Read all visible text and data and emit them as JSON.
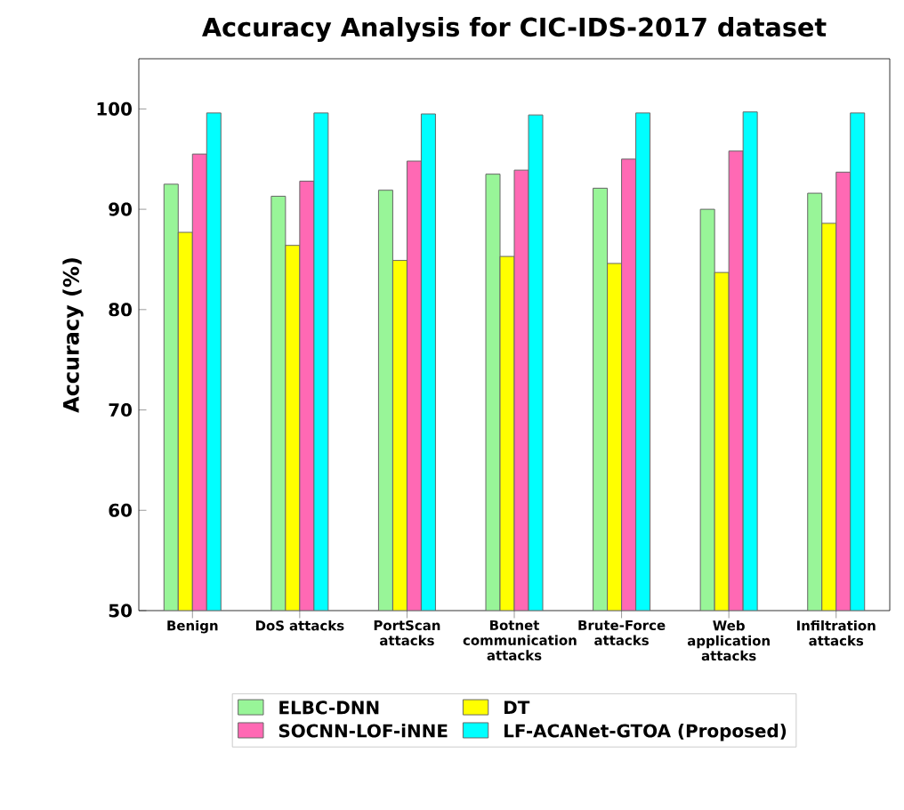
{
  "chart_data": {
    "type": "bar",
    "title": "Accuracy Analysis for CIC-IDS-2017 dataset",
    "ylabel": "Accuracy (%)",
    "categories": [
      "Benign",
      "DoS attacks",
      "PortScan attacks",
      "Botnet communication attacks",
      "Brute-Force attacks",
      "Web application attacks",
      "Infiltration attacks"
    ],
    "series": [
      {
        "name": "ELBC-DNN",
        "color": "#98f598",
        "values": [
          92.5,
          91.3,
          91.9,
          93.5,
          92.1,
          90.0,
          91.6
        ]
      },
      {
        "name": "DT",
        "color": "#ffff00",
        "values": [
          87.7,
          86.4,
          84.9,
          85.3,
          84.6,
          83.7,
          88.6
        ]
      },
      {
        "name": "SOCNN-LOF-iNNE",
        "color": "#ff69b4",
        "values": [
          95.5,
          92.8,
          94.8,
          93.9,
          95.0,
          95.8,
          93.7
        ]
      },
      {
        "name": "LF-ACANet-GTOA (Proposed)",
        "color": "#00ffff",
        "values": [
          99.6,
          99.6,
          99.5,
          99.4,
          99.6,
          99.7,
          99.6
        ]
      }
    ],
    "ylim": [
      50,
      105
    ],
    "yticks": [
      50,
      60,
      70,
      80,
      90,
      100
    ],
    "legend": "bottom"
  }
}
